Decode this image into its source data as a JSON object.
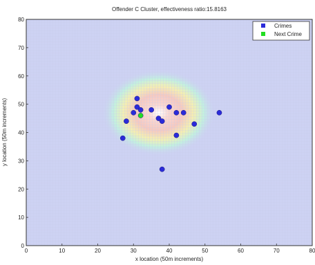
{
  "chart_data": {
    "type": "scatter",
    "title": "Offender C Cluster, effectiveness ratio:15.8163",
    "xlabel": "x location (50m increments)",
    "ylabel": "y location (50m increments)",
    "xlim": [
      0,
      80
    ],
    "ylim": [
      0,
      80
    ],
    "xticks": [
      0,
      10,
      20,
      30,
      40,
      50,
      60,
      70,
      80
    ],
    "yticks": [
      0,
      10,
      20,
      30,
      40,
      50,
      60,
      70,
      80
    ],
    "grid": true,
    "legend_position": "top-right",
    "background": "heatmap",
    "heatmap_peak": {
      "x": 37,
      "y": 47
    },
    "series": [
      {
        "name": "Crimes",
        "color": "#2b2bd9",
        "points": [
          [
            27,
            38
          ],
          [
            28,
            44
          ],
          [
            30,
            47
          ],
          [
            31,
            52
          ],
          [
            31,
            49
          ],
          [
            32,
            48
          ],
          [
            35,
            48
          ],
          [
            37,
            45
          ],
          [
            38,
            44
          ],
          [
            40,
            49
          ],
          [
            42,
            47
          ],
          [
            44,
            47
          ],
          [
            42,
            39
          ],
          [
            47,
            43
          ],
          [
            54,
            47
          ],
          [
            38,
            27
          ]
        ]
      },
      {
        "name": "Next Crime",
        "color": "#22dd22",
        "points": [
          [
            32,
            46
          ]
        ]
      }
    ]
  },
  "legend": {
    "crimes_label": "Crimes",
    "next_crime_label": "Next Crime"
  }
}
